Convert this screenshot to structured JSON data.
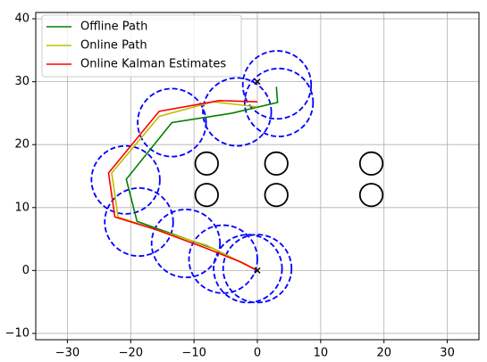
{
  "chart_data": {
    "type": "line",
    "xlim": [
      -35,
      35
    ],
    "ylim": [
      -11,
      41
    ],
    "xticks": [
      {
        "value": -30,
        "label": "−30"
      },
      {
        "value": -20,
        "label": "−20"
      },
      {
        "value": -10,
        "label": "−10"
      },
      0,
      10,
      20,
      30
    ],
    "yticks": [
      {
        "value": -10,
        "label": "−10"
      },
      0,
      10,
      20,
      30,
      40
    ],
    "grid": true,
    "legend": "upper-left",
    "series": [
      {
        "name": "Offline Path",
        "color": "#008000",
        "x": [
          0,
          -7,
          -19,
          -20.7,
          -13.5,
          -4,
          3.2,
          3
        ],
        "values": [
          0,
          3.5,
          7.8,
          14.5,
          23.5,
          25,
          26.7,
          29.2
        ]
      },
      {
        "name": "Online Path",
        "color": "#bfbf00",
        "x": [
          0,
          -8,
          -16,
          -22,
          -23,
          -15.5,
          -7,
          0
        ],
        "values": [
          0,
          4,
          6.5,
          8.5,
          15.5,
          24.5,
          26.8,
          26
        ]
      },
      {
        "name": "Online Kalman Estimates",
        "color": "#ff0000",
        "x": [
          0,
          -2.5,
          -8,
          -16,
          -22.5,
          -23.5,
          -15.5,
          -6,
          0
        ],
        "values": [
          0,
          1.3,
          3.5,
          6.5,
          8.5,
          15.5,
          25.3,
          27,
          26.8
        ]
      }
    ],
    "circles": {
      "color": "#0000ff",
      "x": [
        0,
        -1.5,
        -5.4,
        -11.3,
        -18.7,
        -20.8,
        -13.5,
        -3.2,
        3.4,
        3.1
      ],
      "y": [
        0.3,
        0.3,
        1.8,
        4.3,
        7.7,
        14.4,
        23.5,
        25.2,
        26.7,
        29.5
      ],
      "r": [
        5.4,
        5.4,
        5.4,
        5.4,
        5.4,
        5.4,
        5.4,
        5.4,
        5.4,
        5.4
      ]
    },
    "obstacles": {
      "color": "#000000",
      "x": [
        -8,
        -8,
        3,
        3,
        18,
        18
      ],
      "y": [
        17,
        12,
        17,
        12,
        17,
        12
      ],
      "r": [
        1.8,
        1.8,
        1.8,
        1.8,
        1.8,
        1.8
      ]
    },
    "markers": {
      "x": [
        0,
        0
      ],
      "y": [
        0,
        30
      ]
    }
  }
}
